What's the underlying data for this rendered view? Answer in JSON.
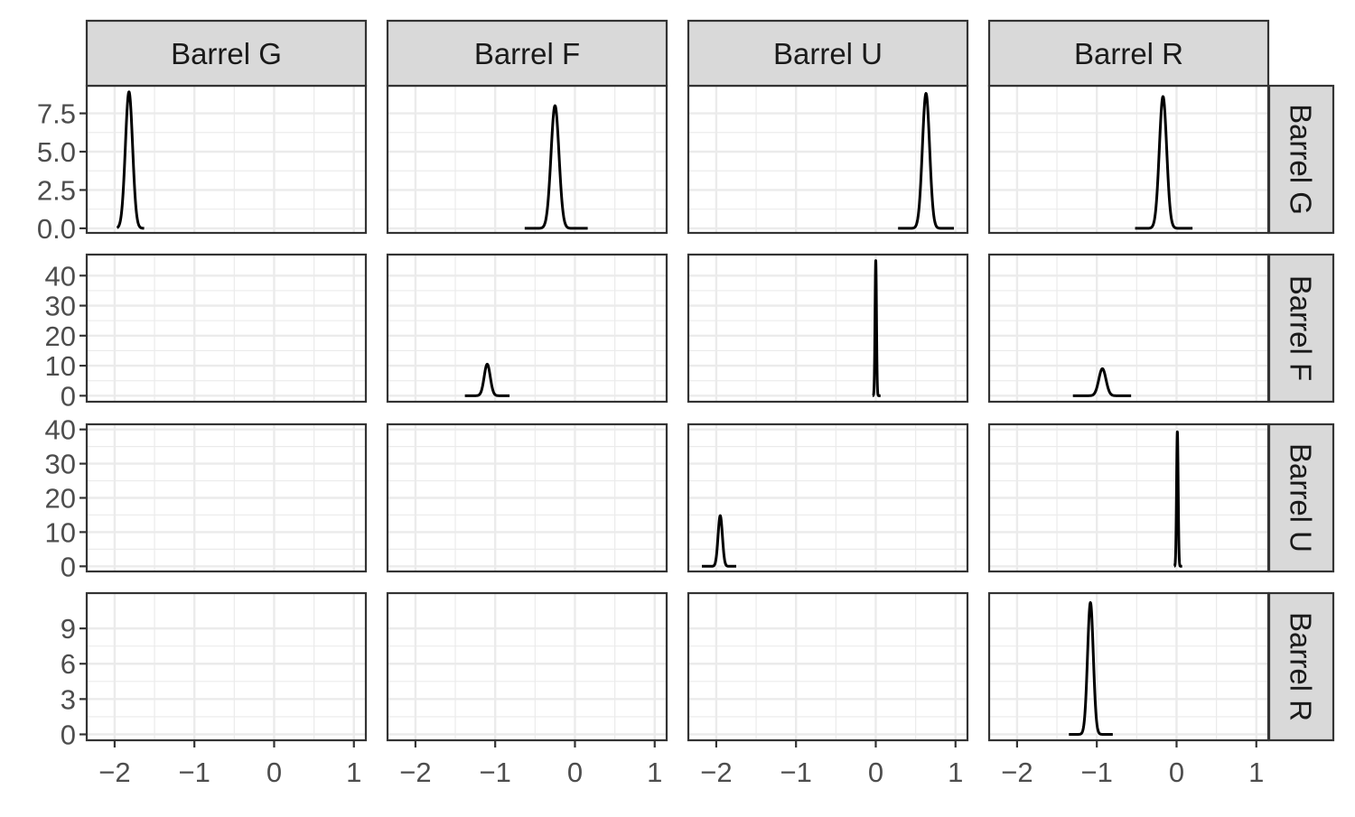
{
  "chart_data": {
    "type": "line",
    "facets": {
      "cols": [
        "Barrel G",
        "Barrel F",
        "Barrel U",
        "Barrel R"
      ],
      "rows": [
        "Barrel G",
        "Barrel F",
        "Barrel U",
        "Barrel R"
      ]
    },
    "x_axis": {
      "range": [
        -2.35,
        1.15
      ],
      "ticks": [
        -2,
        -1,
        0,
        1
      ],
      "tick_labels": [
        "−2",
        "−1",
        "0",
        "1"
      ]
    },
    "row_axes": [
      {
        "range": [
          -0.3,
          9.3
        ],
        "ticks": [
          0,
          2.5,
          5,
          7.5
        ],
        "tick_labels": [
          "0.0",
          "2.5",
          "5.0",
          "7.5"
        ]
      },
      {
        "range": [
          -2,
          47
        ],
        "ticks": [
          0,
          10,
          20,
          30,
          40
        ],
        "tick_labels": [
          "0",
          "10",
          "20",
          "30",
          "40"
        ]
      },
      {
        "range": [
          -1.5,
          41.5
        ],
        "ticks": [
          0,
          10,
          20,
          30,
          40
        ],
        "tick_labels": [
          "0",
          "10",
          "20",
          "30",
          "40"
        ]
      },
      {
        "range": [
          -0.5,
          12.0
        ],
        "ticks": [
          0,
          3,
          6,
          9
        ],
        "tick_labels": [
          "0",
          "3",
          "6",
          "9"
        ]
      }
    ],
    "grid": true,
    "panels": [
      {
        "row": 0,
        "col": 0,
        "center": -1.82,
        "peak": 8.9,
        "sd": 0.045,
        "x_from": -1.97,
        "x_to": -1.63
      },
      {
        "row": 0,
        "col": 1,
        "center": -0.25,
        "peak": 8.0,
        "sd": 0.05,
        "x_from": -0.63,
        "x_to": 0.16
      },
      {
        "row": 0,
        "col": 2,
        "center": 0.63,
        "peak": 8.8,
        "sd": 0.045,
        "x_from": 0.28,
        "x_to": 0.98
      },
      {
        "row": 0,
        "col": 3,
        "center": -0.17,
        "peak": 8.6,
        "sd": 0.046,
        "x_from": -0.52,
        "x_to": 0.2
      },
      {
        "row": 1,
        "col": 1,
        "center": -1.1,
        "peak": 10.5,
        "sd": 0.038,
        "x_from": -1.38,
        "x_to": -0.82
      },
      {
        "row": 1,
        "col": 2,
        "center": 0.0,
        "peak": 45.0,
        "sd": 0.009,
        "x_from": -0.04,
        "x_to": 0.06
      },
      {
        "row": 1,
        "col": 3,
        "center": -0.93,
        "peak": 9.0,
        "sd": 0.045,
        "x_from": -1.3,
        "x_to": -0.57
      },
      {
        "row": 2,
        "col": 2,
        "center": -1.95,
        "peak": 14.8,
        "sd": 0.027,
        "x_from": -2.18,
        "x_to": -1.75
      },
      {
        "row": 2,
        "col": 3,
        "center": 0.01,
        "peak": 39.3,
        "sd": 0.01,
        "x_from": -0.03,
        "x_to": 0.07
      },
      {
        "row": 3,
        "col": 3,
        "center": -1.08,
        "peak": 11.2,
        "sd": 0.036,
        "x_from": -1.35,
        "x_to": -0.8
      }
    ]
  }
}
